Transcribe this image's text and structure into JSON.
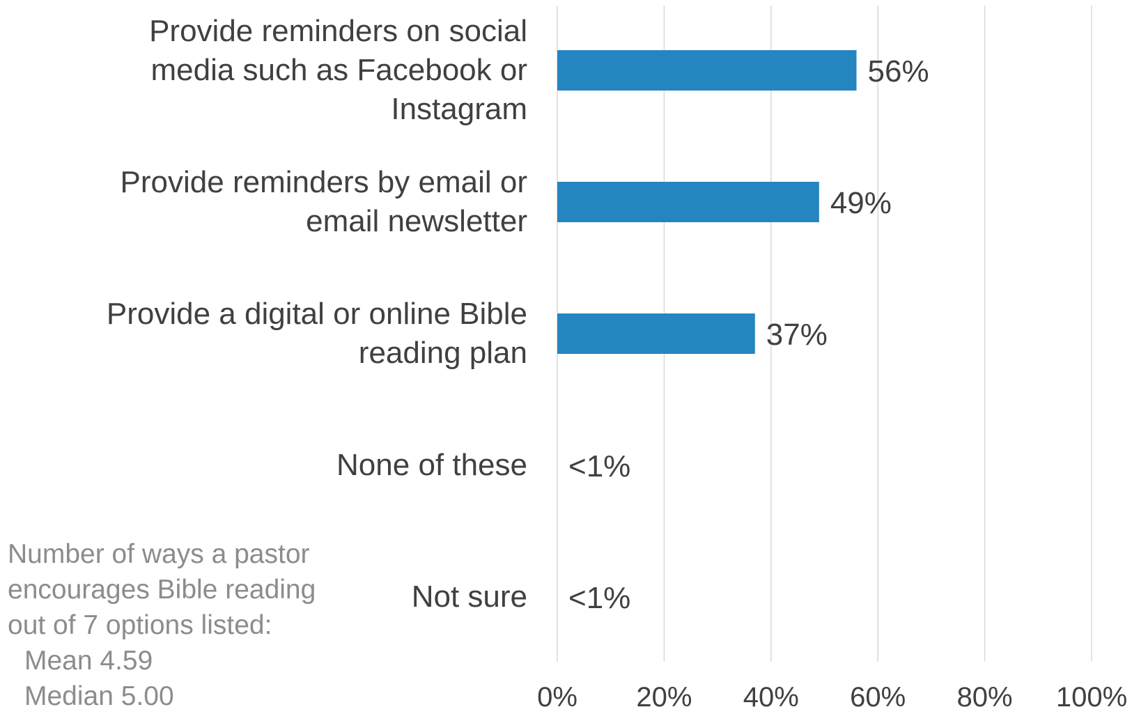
{
  "chart_data": {
    "type": "bar",
    "orientation": "horizontal",
    "categories": [
      "Provide reminders on social media such as Facebook or Instagram",
      "Provide reminders by email or email newsletter",
      "Provide a digital or online Bible reading plan",
      "None of these",
      "Not sure"
    ],
    "category_lines": [
      [
        "Provide reminders on social",
        "media such as Facebook or",
        "Instagram"
      ],
      [
        "Provide reminders by email or",
        "email newsletter"
      ],
      [
        "Provide a digital or online Bible",
        "reading plan"
      ],
      [
        "None of these"
      ],
      [
        "Not sure"
      ]
    ],
    "values": [
      56,
      49,
      37,
      0.5,
      0.5
    ],
    "data_labels": [
      "56%",
      "49%",
      "37%",
      "<1%",
      "<1%"
    ],
    "x_ticks": [
      "0%",
      "20%",
      "40%",
      "60%",
      "80%",
      "100%"
    ],
    "xlim": [
      0,
      100
    ],
    "grid": true,
    "bar_color": "#2585C0",
    "label_color": "#404040",
    "grid_color": "#D9D9D9"
  },
  "note": {
    "lead": "Number of ways a pastor\nencourages Bible reading\nout of 7 options listed:",
    "mean": "Mean 4.59",
    "median": "Median 5.00"
  }
}
